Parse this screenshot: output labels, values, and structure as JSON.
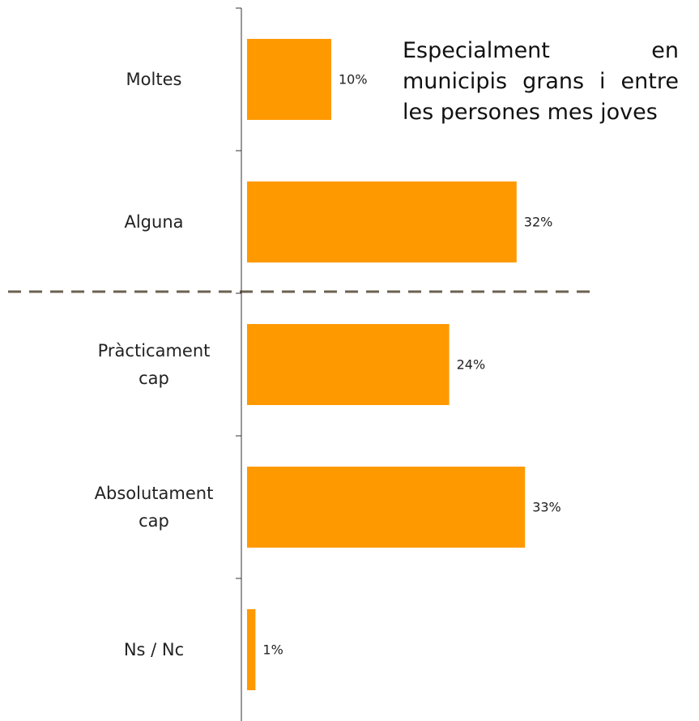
{
  "chart_data": {
    "type": "bar",
    "orientation": "horizontal",
    "categories": [
      "Moltes",
      "Alguna",
      "Pràcticament cap",
      "Absolutament cap",
      "Ns / Nc"
    ],
    "values": [
      10,
      32,
      24,
      33,
      1
    ],
    "value_labels": [
      "10%",
      "32%",
      "24%",
      "33%",
      "1%"
    ],
    "color": "#ff9900",
    "xlim": [
      0,
      50
    ],
    "annotation": "Especialment en municipis grans i entre les persones mes joves"
  }
}
